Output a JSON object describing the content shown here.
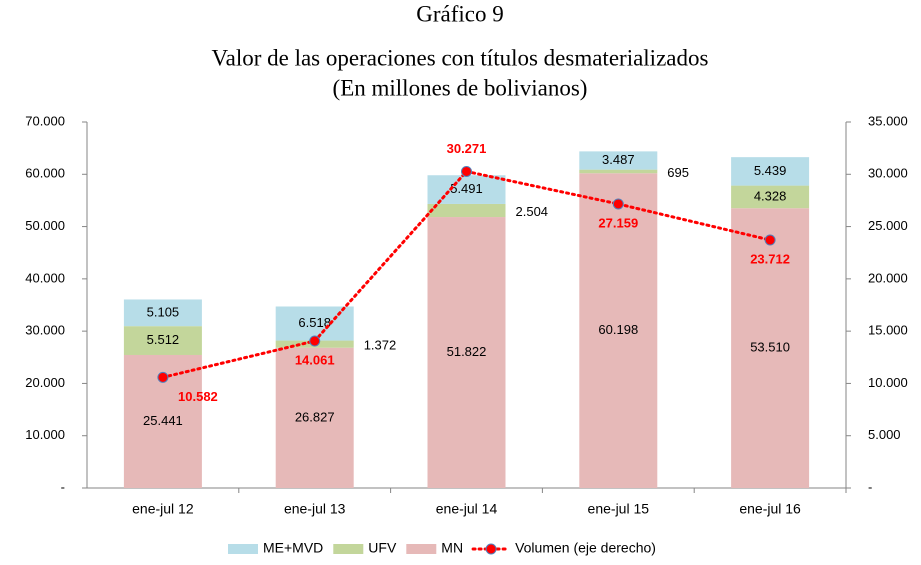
{
  "chart_data": {
    "type": "bar",
    "title": "Gráfico 9",
    "subtitle": [
      "Valor de las operaciones con títulos desmaterializados",
      "(En millones de bolivianos)"
    ],
    "categories": [
      "ene-jul 12",
      "ene-jul 13",
      "ene-jul 14",
      "ene-jul 15",
      "ene-jul 16"
    ],
    "stacked": true,
    "series": [
      {
        "name": "MN",
        "color": "#e6b9b8",
        "values": [
          25441,
          26827,
          51822,
          60198,
          53510
        ],
        "value_labels": [
          "25.441",
          "26.827",
          "51.822",
          "60.198",
          "53.510"
        ]
      },
      {
        "name": "UFV",
        "color": "#c3d69b",
        "values": [
          5512,
          1372,
          2504,
          695,
          4328
        ],
        "value_labels": [
          "5.512",
          "1.372",
          "2.504",
          "695",
          "4.328"
        ]
      },
      {
        "name": "ME+MVD",
        "color": "#b7dde8",
        "values": [
          5105,
          6518,
          5491,
          3487,
          5439
        ],
        "value_labels": [
          "5.105",
          "6.518",
          "5.491",
          "3.487",
          "5.439"
        ]
      },
      {
        "name": "Volumen (eje derecho)",
        "type": "line",
        "axis": "y2",
        "color": "#ff0000",
        "values": [
          10582,
          14061,
          30271,
          27159,
          23712
        ],
        "value_labels": [
          "10.582",
          "14.061",
          "30.271",
          "27.159",
          "23.712"
        ]
      }
    ],
    "ylim": [
      0,
      70000
    ],
    "yticks": [
      {
        "value": 0,
        "label": "-"
      },
      {
        "value": 10000,
        "label": "10.000"
      },
      {
        "value": 20000,
        "label": "20.000"
      },
      {
        "value": 30000,
        "label": "30.000"
      },
      {
        "value": 40000,
        "label": "40.000"
      },
      {
        "value": 50000,
        "label": "50.000"
      },
      {
        "value": 60000,
        "label": "60.000"
      },
      {
        "value": 70000,
        "label": "70.000"
      }
    ],
    "y2lim": [
      0,
      35000
    ],
    "y2ticks": [
      {
        "value": 0,
        "label": "-"
      },
      {
        "value": 5000,
        "label": "5.000"
      },
      {
        "value": 10000,
        "label": "10.000"
      },
      {
        "value": 15000,
        "label": "15.000"
      },
      {
        "value": 20000,
        "label": "20.000"
      },
      {
        "value": 25000,
        "label": "25.000"
      },
      {
        "value": 30000,
        "label": "30.000"
      },
      {
        "value": 35000,
        "label": "35.000"
      }
    ],
    "legend": "bottom",
    "grid": false
  }
}
